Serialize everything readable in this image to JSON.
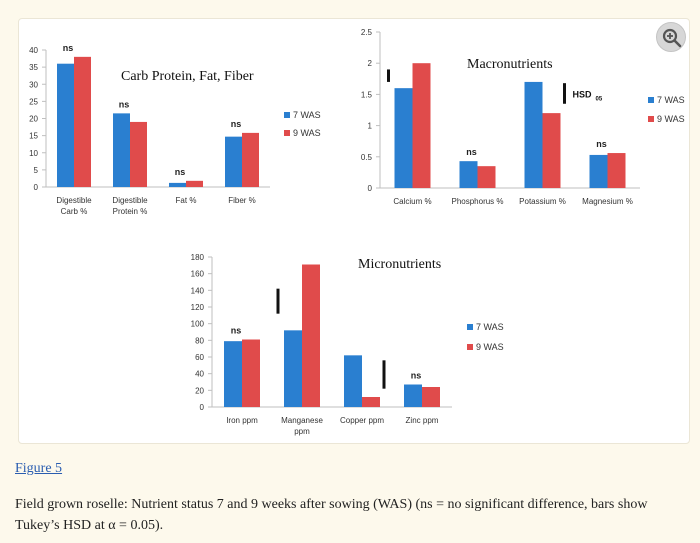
{
  "figure_link": "Figure 5",
  "caption": "Field grown roselle: Nutrient status 7 and 9 weeks after sowing (WAS) (ns = no significant difference, bars show Tukey’s HSD at α = 0.05).",
  "zoom_icon": "zoom-in-icon",
  "colors": {
    "series_7": "#2a7fd0",
    "series_9": "#e04b4b"
  },
  "chart_data": [
    {
      "type": "bar",
      "title": "Carb Protein, Fat, Fiber",
      "categories": [
        [
          "Digestible",
          "Carb %"
        ],
        [
          "Digestible",
          "Protein %"
        ],
        [
          "Fat %"
        ],
        [
          "Fiber %"
        ]
      ],
      "series": [
        {
          "name": "7 WAS",
          "values": [
            36,
            21.5,
            1.2,
            14.7
          ]
        },
        {
          "name": "9 WAS",
          "values": [
            38,
            19,
            1.8,
            15.8
          ]
        }
      ],
      "ylim": [
        0,
        40
      ],
      "yticks": [
        0,
        5,
        10,
        15,
        20,
        25,
        30,
        35,
        40
      ],
      "legend": "right",
      "annotations": [
        {
          "category": 0,
          "text": "ns"
        },
        {
          "category": 1,
          "text": "ns"
        },
        {
          "category": 2,
          "text": "ns"
        },
        {
          "category": 3,
          "text": "ns"
        }
      ],
      "hsd_bars": []
    },
    {
      "type": "bar",
      "title": "Macronutrients",
      "categories": [
        [
          "Calcium %"
        ],
        [
          "Phosphorus %"
        ],
        [
          "Potassium %"
        ],
        [
          "Magnesium %"
        ]
      ],
      "series": [
        {
          "name": "7 WAS",
          "values": [
            1.6,
            0.43,
            1.7,
            0.53
          ]
        },
        {
          "name": "9 WAS",
          "values": [
            2.0,
            0.35,
            1.2,
            0.56
          ]
        }
      ],
      "ylim": [
        0,
        2.5
      ],
      "yticks": [
        0,
        0.5,
        1,
        1.5,
        2,
        2.5
      ],
      "legend": "right",
      "annotations": [
        {
          "category": 1,
          "text": "ns"
        },
        {
          "category": 3,
          "text": "ns"
        }
      ],
      "hsd_bars": [
        {
          "category": 0,
          "from": 1.7,
          "to": 1.9
        },
        {
          "category": 2,
          "from": 1.35,
          "to": 1.68
        }
      ],
      "hsd_label": "HSD",
      "hsd_subscript": "05"
    },
    {
      "type": "bar",
      "title": "Micronutrients",
      "categories": [
        [
          "Iron ppm"
        ],
        [
          "Manganese",
          "ppm"
        ],
        [
          "Copper ppm"
        ],
        [
          "Zinc ppm"
        ]
      ],
      "series": [
        {
          "name": "7 WAS",
          "values": [
            79,
            92,
            62,
            27
          ]
        },
        {
          "name": "9 WAS",
          "values": [
            81,
            171,
            12,
            24
          ]
        }
      ],
      "ylim": [
        0,
        180
      ],
      "yticks": [
        0,
        20,
        40,
        60,
        80,
        100,
        120,
        140,
        160,
        180
      ],
      "legend": "right",
      "annotations": [
        {
          "category": 0,
          "text": "ns"
        },
        {
          "category": 3,
          "text": "ns"
        }
      ],
      "hsd_bars": [
        {
          "category": 1,
          "from": 112,
          "to": 142
        },
        {
          "category": 2,
          "from": 22,
          "to": 56
        }
      ]
    }
  ]
}
